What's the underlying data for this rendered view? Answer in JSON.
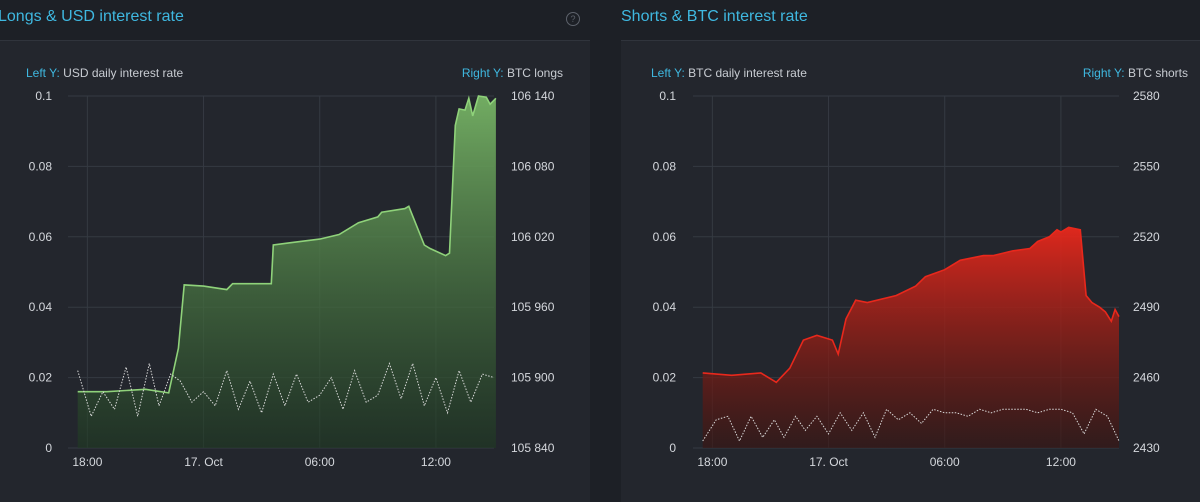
{
  "colors": {
    "accent": "#3fb8e0",
    "longs": "#8fd27a",
    "shorts": "#e8281c",
    "rate_line": "#d9d9d9"
  },
  "panels": [
    {
      "title": "Longs & USD interest rate",
      "help_icon": "?",
      "left_key": "Left Y:",
      "left_label": "USD daily interest rate",
      "right_key": "Right Y:",
      "right_label": "BTC longs"
    },
    {
      "title": "Shorts & BTC interest rate",
      "help_icon": "?",
      "left_key": "Left Y:",
      "left_label": "BTC daily interest rate",
      "right_key": "Right Y:",
      "right_label": "BTC shorts"
    }
  ],
  "chart_data": [
    {
      "type": "area",
      "title": "Longs & USD interest rate",
      "x_range_hours": [
        -7,
        15
      ],
      "x_ticks": [
        {
          "v": -6,
          "label": "18:00"
        },
        {
          "v": 0,
          "label": "17. Oct"
        },
        {
          "v": 6,
          "label": "06:00"
        },
        {
          "v": 12,
          "label": "12:00"
        }
      ],
      "left_axis": {
        "label": "USD daily interest rate",
        "range": [
          0,
          0.1
        ],
        "ticks": [
          "0",
          "0.02",
          "0.04",
          "0.06",
          "0.08",
          "0.1"
        ]
      },
      "right_axis": {
        "label": "BTC longs",
        "range": [
          105840,
          106140
        ],
        "ticks": [
          "105 840",
          "105 900",
          "105 960",
          "106 020",
          "106 080",
          "106 140"
        ]
      },
      "series": [
        {
          "name": "BTC longs",
          "axis": "right",
          "style": "filled",
          "x": [
            -6.5,
            -5.0,
            -3.0,
            -1.8,
            -1.3,
            -1.0,
            0.0,
            1.2,
            1.5,
            2.4,
            3.5,
            3.6,
            4.5,
            6.0,
            7.0,
            8.0,
            9.0,
            9.2,
            10.4,
            10.6,
            11.4,
            11.7,
            12.5,
            12.7,
            13.0,
            13.2,
            13.5,
            13.7,
            13.9,
            14.2,
            14.6,
            14.8,
            15.1
          ],
          "values": [
            105888,
            105888,
            105890,
            105887,
            105925,
            105979,
            105978,
            105975,
            105980,
            105980,
            105980,
            106013,
            106015,
            106018,
            106022,
            106032,
            106037,
            106041,
            106044,
            106046,
            106013,
            106010,
            106004,
            106006,
            106115,
            106129,
            106128,
            106138,
            106123,
            106140,
            106139,
            106133,
            106138
          ]
        },
        {
          "name": "USD daily interest rate",
          "axis": "left",
          "style": "dotted",
          "x": [
            -6.5,
            -5.8,
            -5.2,
            -4.6,
            -4.0,
            -3.4,
            -2.8,
            -2.3,
            -1.7,
            -1.2,
            -0.6,
            0.0,
            0.6,
            1.2,
            1.8,
            2.4,
            3.0,
            3.6,
            4.2,
            4.8,
            5.4,
            6.0,
            6.6,
            7.2,
            7.8,
            8.4,
            9.0,
            9.6,
            10.2,
            10.8,
            11.4,
            12.0,
            12.6,
            13.2,
            13.8,
            14.4,
            15.0
          ],
          "values": [
            0.022,
            0.009,
            0.016,
            0.011,
            0.023,
            0.009,
            0.024,
            0.012,
            0.021,
            0.019,
            0.013,
            0.016,
            0.012,
            0.022,
            0.011,
            0.019,
            0.01,
            0.021,
            0.012,
            0.021,
            0.013,
            0.015,
            0.02,
            0.011,
            0.022,
            0.013,
            0.015,
            0.024,
            0.014,
            0.024,
            0.012,
            0.02,
            0.01,
            0.022,
            0.013,
            0.021,
            0.02
          ]
        }
      ]
    },
    {
      "type": "area",
      "title": "Shorts & BTC interest rate",
      "x_range_hours": [
        -7,
        15
      ],
      "x_ticks": [
        {
          "v": -6,
          "label": "18:00"
        },
        {
          "v": 0,
          "label": "17. Oct"
        },
        {
          "v": 6,
          "label": "06:00"
        },
        {
          "v": 12,
          "label": "12:00"
        }
      ],
      "left_axis": {
        "label": "BTC daily interest rate",
        "range": [
          0,
          0.1
        ],
        "ticks": [
          "0",
          "0.02",
          "0.04",
          "0.06",
          "0.08",
          "0.1"
        ]
      },
      "right_axis": {
        "label": "BTC shorts",
        "range": [
          2430,
          2580
        ],
        "ticks": [
          "2430",
          "2460",
          "2490",
          "2520",
          "2550",
          "2580"
        ]
      },
      "series": [
        {
          "name": "BTC shorts",
          "axis": "right",
          "style": "filled",
          "x": [
            -6.5,
            -5.0,
            -3.5,
            -2.7,
            -2.0,
            -1.3,
            -0.6,
            0.2,
            0.5,
            0.9,
            1.4,
            2.0,
            3.5,
            4.5,
            5.0,
            6.0,
            6.8,
            8.0,
            8.5,
            9.5,
            10.4,
            10.8,
            11.4,
            11.8,
            12.0,
            12.4,
            13.0,
            13.3,
            13.6,
            14.0,
            14.3,
            14.6,
            14.8,
            15.0
          ],
          "values": [
            2462,
            2461,
            2462,
            2458,
            2464,
            2476,
            2478,
            2476,
            2470,
            2485,
            2493,
            2492,
            2495,
            2499,
            2503,
            2506,
            2510,
            2512,
            2512,
            2514,
            2515,
            2518,
            2520,
            2523,
            2522,
            2524,
            2523,
            2495,
            2492,
            2490,
            2488,
            2484,
            2489,
            2486
          ]
        },
        {
          "name": "BTC daily interest rate",
          "axis": "left",
          "style": "dotted",
          "x": [
            -6.5,
            -5.8,
            -5.2,
            -4.6,
            -4.0,
            -3.4,
            -2.8,
            -2.3,
            -1.7,
            -1.2,
            -0.6,
            0.0,
            0.6,
            1.2,
            1.8,
            2.4,
            3.0,
            3.6,
            4.2,
            4.8,
            5.4,
            6.0,
            6.6,
            7.2,
            7.8,
            8.4,
            9.0,
            9.6,
            10.2,
            10.8,
            11.4,
            12.0,
            12.6,
            13.2,
            13.8,
            14.4,
            15.0
          ],
          "values": [
            0.002,
            0.008,
            0.009,
            0.002,
            0.009,
            0.003,
            0.008,
            0.003,
            0.009,
            0.005,
            0.009,
            0.004,
            0.01,
            0.005,
            0.01,
            0.003,
            0.011,
            0.008,
            0.01,
            0.007,
            0.011,
            0.01,
            0.01,
            0.009,
            0.011,
            0.01,
            0.011,
            0.011,
            0.011,
            0.01,
            0.011,
            0.011,
            0.01,
            0.004,
            0.011,
            0.009,
            0.002
          ]
        }
      ]
    }
  ]
}
